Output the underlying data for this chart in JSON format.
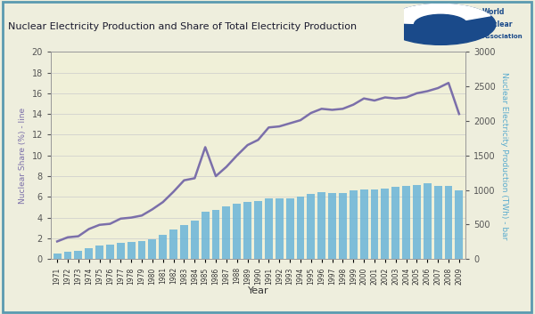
{
  "years": [
    1971,
    1972,
    1973,
    1974,
    1975,
    1976,
    1977,
    1978,
    1979,
    1980,
    1981,
    1982,
    1983,
    1984,
    1985,
    1986,
    1987,
    1988,
    1989,
    1990,
    1991,
    1992,
    1993,
    1994,
    1995,
    1996,
    1997,
    1998,
    1999,
    2000,
    2001,
    2002,
    2003,
    2004,
    2005,
    2006,
    2007,
    2008,
    2009
  ],
  "nuclear_twh": [
    79,
    100,
    113,
    163,
    193,
    207,
    230,
    245,
    255,
    284,
    350,
    428,
    498,
    558,
    686,
    714,
    762,
    798,
    827,
    839,
    882,
    880,
    878,
    906,
    937,
    966,
    955,
    960,
    988,
    1006,
    1007,
    1020,
    1046,
    1060,
    1074,
    1093,
    1060,
    1060,
    995
  ],
  "nuclear_share": [
    1.7,
    2.1,
    2.2,
    2.9,
    3.3,
    3.4,
    3.9,
    4.0,
    4.2,
    4.8,
    5.5,
    6.5,
    7.6,
    7.8,
    10.8,
    8.0,
    8.9,
    10.0,
    11.0,
    11.5,
    12.7,
    12.8,
    13.1,
    13.4,
    14.1,
    14.5,
    14.4,
    14.5,
    14.9,
    15.5,
    15.3,
    15.6,
    15.5,
    15.6,
    16.0,
    16.2,
    16.5,
    17.0,
    14.0
  ],
  "bar_color": "#6ab4d8",
  "line_color": "#7b6faa",
  "bg_color": "#eeeedd",
  "plot_bg_color": "#f0f0d8",
  "title": "Nuclear Electricity Production and Share of Total Electricity Production",
  "ylabel_left": "Nuclear Share (%) - line",
  "ylabel_right": "Nuclear Electricity Production (TWh) - bar",
  "xlabel": "Year",
  "ylim_left": [
    0,
    20
  ],
  "ylim_right": [
    0,
    3000
  ],
  "yticks_left": [
    0,
    2,
    4,
    6,
    8,
    10,
    12,
    14,
    16,
    18,
    20
  ],
  "yticks_right": [
    0,
    500,
    1000,
    1500,
    2000,
    2500,
    3000
  ],
  "left_label_color": "#7b6faa",
  "right_label_color": "#5aabce",
  "header_bg": "#c5d9e8",
  "border_color": "#5a9ab0",
  "twh_scale": 150.0
}
